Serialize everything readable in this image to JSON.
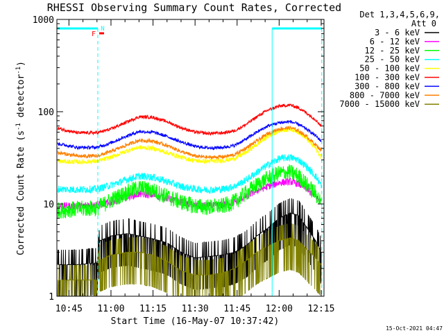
{
  "chart_data": {
    "type": "line",
    "title": "RHESSI Observing Summary Count Rates, Corrected",
    "xlabel": "Start Time (16-May-07 10:37:42)",
    "ylabel_main": "Corrected Count Rate (s",
    "ylabel_sup1": "-1",
    "ylabel_mid": " detector",
    "ylabel_sup2": "-1",
    "ylabel_end": ")",
    "ylog": true,
    "ylim": [
      1,
      1000
    ],
    "xlim_min": [
      40.7,
      136.0
    ],
    "x_ticks": [
      {
        "m": 45,
        "label": "10:45"
      },
      {
        "m": 60,
        "label": "11:00"
      },
      {
        "m": 75,
        "label": "11:15"
      },
      {
        "m": 90,
        "label": "11:30"
      },
      {
        "m": 105,
        "label": "11:45"
      },
      {
        "m": 120,
        "label": "12:00"
      },
      {
        "m": 135,
        "label": "12:15"
      }
    ],
    "y_ticks": [
      {
        "v": 1,
        "label": "1"
      },
      {
        "v": 10,
        "label": "10"
      },
      {
        "v": 100,
        "label": "100"
      },
      {
        "v": 1000,
        "label": "1000"
      }
    ],
    "legend_header": [
      "Det 1,3,4,5,6,9,",
      "Att 0"
    ],
    "legend_placement": "right",
    "timestamp": "15-Oct-2021 04:47",
    "flag_labels": {
      "F": "F",
      "N": "N"
    },
    "night_intervals": [
      [
        40.7,
        55.3
      ],
      [
        117.5,
        135.2
      ]
    ],
    "series": [
      {
        "name": "3 - 6 keV",
        "color": "#000000",
        "noise": 0.55,
        "key": "black",
        "points": [
          [
            41,
            2.2
          ],
          [
            48,
            2.2
          ],
          [
            55,
            2.3
          ],
          [
            56,
            4.0
          ],
          [
            60,
            4.5
          ],
          [
            66,
            4.8
          ],
          [
            70,
            4.5
          ],
          [
            75,
            4.2
          ],
          [
            80,
            3.8
          ],
          [
            85,
            3.0
          ],
          [
            90,
            2.6
          ],
          [
            95,
            2.7
          ],
          [
            100,
            2.8
          ],
          [
            104,
            3.0
          ],
          [
            108,
            3.5
          ],
          [
            112,
            4.5
          ],
          [
            116,
            5.5
          ],
          [
            120,
            7.0
          ],
          [
            124,
            8.0
          ],
          [
            127,
            7.5
          ],
          [
            130,
            5.5
          ],
          [
            133,
            4.0
          ],
          [
            135,
            3.0
          ]
        ]
      },
      {
        "name": "6 - 12 keV",
        "color": "#ff00ff",
        "noise": 0.08,
        "key": "magenta",
        "points": [
          [
            41,
            9.5
          ],
          [
            48,
            9.5
          ],
          [
            55,
            9.8
          ],
          [
            60,
            10.5
          ],
          [
            66,
            12.0
          ],
          [
            70,
            12.8
          ],
          [
            75,
            12.5
          ],
          [
            80,
            11.5
          ],
          [
            85,
            10.5
          ],
          [
            90,
            9.6
          ],
          [
            95,
            9.5
          ],
          [
            100,
            9.8
          ],
          [
            104,
            10.5
          ],
          [
            108,
            12.0
          ],
          [
            112,
            14.0
          ],
          [
            116,
            15.5
          ],
          [
            120,
            17.0
          ],
          [
            124,
            17.5
          ],
          [
            127,
            16.5
          ],
          [
            130,
            14.5
          ],
          [
            133,
            12.0
          ],
          [
            135,
            10.5
          ]
        ]
      },
      {
        "name": "12 - 25 keV",
        "color": "#00ff00",
        "noise": 0.18,
        "key": "green",
        "points": [
          [
            41,
            8.5
          ],
          [
            48,
            8.8
          ],
          [
            55,
            9.0
          ],
          [
            60,
            11.0
          ],
          [
            66,
            13.5
          ],
          [
            70,
            15.0
          ],
          [
            75,
            14.0
          ],
          [
            80,
            12.0
          ],
          [
            85,
            10.5
          ],
          [
            90,
            9.5
          ],
          [
            95,
            9.2
          ],
          [
            100,
            9.5
          ],
          [
            104,
            10.5
          ],
          [
            108,
            13.0
          ],
          [
            112,
            16.0
          ],
          [
            116,
            19.0
          ],
          [
            120,
            21.5
          ],
          [
            124,
            22.0
          ],
          [
            127,
            20.0
          ],
          [
            130,
            16.0
          ],
          [
            133,
            13.0
          ],
          [
            135,
            10.0
          ]
        ]
      },
      {
        "name": "25 - 50 keV",
        "color": "#00ffff",
        "noise": 0.08,
        "key": "cyan",
        "points": [
          [
            41,
            14.5
          ],
          [
            48,
            14.3
          ],
          [
            55,
            14.5
          ],
          [
            60,
            16.0
          ],
          [
            66,
            18.5
          ],
          [
            70,
            20.0
          ],
          [
            75,
            19.5
          ],
          [
            80,
            17.5
          ],
          [
            85,
            15.5
          ],
          [
            90,
            14.5
          ],
          [
            95,
            14.2
          ],
          [
            100,
            14.5
          ],
          [
            104,
            15.5
          ],
          [
            108,
            18.0
          ],
          [
            112,
            22.0
          ],
          [
            116,
            26.5
          ],
          [
            120,
            31.0
          ],
          [
            124,
            32.0
          ],
          [
            127,
            30.0
          ],
          [
            130,
            25.0
          ],
          [
            133,
            20.0
          ],
          [
            135,
            16.0
          ]
        ]
      },
      {
        "name": "50 - 100 keV",
        "color": "#ffff00",
        "noise": 0.05,
        "key": "yellow",
        "points": [
          [
            41,
            29
          ],
          [
            48,
            28.5
          ],
          [
            55,
            29
          ],
          [
            60,
            32
          ],
          [
            66,
            38
          ],
          [
            70,
            41
          ],
          [
            75,
            40
          ],
          [
            80,
            36
          ],
          [
            85,
            32
          ],
          [
            90,
            29.5
          ],
          [
            95,
            29
          ],
          [
            100,
            29.5
          ],
          [
            104,
            31
          ],
          [
            108,
            36
          ],
          [
            112,
            44
          ],
          [
            116,
            54
          ],
          [
            120,
            62
          ],
          [
            124,
            65
          ],
          [
            127,
            60
          ],
          [
            130,
            50
          ],
          [
            133,
            40
          ],
          [
            135,
            32
          ]
        ]
      },
      {
        "name": "100 - 300 keV",
        "color": "#ff0000",
        "noise": 0.035,
        "key": "red",
        "points": [
          [
            41,
            66
          ],
          [
            48,
            59
          ],
          [
            55,
            59
          ],
          [
            60,
            65
          ],
          [
            66,
            78
          ],
          [
            70,
            88
          ],
          [
            75,
            87
          ],
          [
            80,
            78
          ],
          [
            85,
            67
          ],
          [
            90,
            60
          ],
          [
            95,
            58
          ],
          [
            100,
            59
          ],
          [
            104,
            62
          ],
          [
            108,
            72
          ],
          [
            112,
            88
          ],
          [
            116,
            104
          ],
          [
            120,
            115
          ],
          [
            124,
            118
          ],
          [
            127,
            110
          ],
          [
            130,
            96
          ],
          [
            133,
            82
          ],
          [
            135,
            70
          ]
        ]
      },
      {
        "name": "300 - 800 keV",
        "color": "#0000ff",
        "noise": 0.035,
        "key": "blue",
        "points": [
          [
            41,
            45
          ],
          [
            48,
            41
          ],
          [
            55,
            41
          ],
          [
            60,
            46
          ],
          [
            66,
            55
          ],
          [
            70,
            61
          ],
          [
            75,
            60
          ],
          [
            80,
            54
          ],
          [
            85,
            47
          ],
          [
            90,
            42
          ],
          [
            95,
            40.5
          ],
          [
            100,
            41
          ],
          [
            104,
            43
          ],
          [
            108,
            50
          ],
          [
            112,
            60
          ],
          [
            116,
            70
          ],
          [
            120,
            76
          ],
          [
            124,
            78
          ],
          [
            127,
            73
          ],
          [
            130,
            64
          ],
          [
            133,
            55
          ],
          [
            135,
            48
          ]
        ]
      },
      {
        "name": "800 - 7000 keV",
        "color": "#ff8000",
        "noise": 0.04,
        "key": "orange",
        "points": [
          [
            41,
            36
          ],
          [
            48,
            33
          ],
          [
            55,
            33
          ],
          [
            60,
            37
          ],
          [
            66,
            44
          ],
          [
            70,
            49
          ],
          [
            75,
            48
          ],
          [
            80,
            43
          ],
          [
            85,
            37
          ],
          [
            90,
            33
          ],
          [
            95,
            32
          ],
          [
            100,
            32.5
          ],
          [
            104,
            34
          ],
          [
            108,
            40
          ],
          [
            112,
            48
          ],
          [
            116,
            58
          ],
          [
            120,
            65
          ],
          [
            124,
            67
          ],
          [
            127,
            62
          ],
          [
            130,
            53
          ],
          [
            133,
            44
          ],
          [
            135,
            38
          ]
        ]
      },
      {
        "name": "7000 - 15000 keV",
        "color": "#808000",
        "noise": 0.55,
        "key": "olive",
        "points": [
          [
            41,
            1.5
          ],
          [
            48,
            1.5
          ],
          [
            55,
            1.5
          ],
          [
            56,
            2.5
          ],
          [
            60,
            2.8
          ],
          [
            66,
            3.0
          ],
          [
            70,
            3.0
          ],
          [
            75,
            2.8
          ],
          [
            80,
            2.4
          ],
          [
            85,
            1.9
          ],
          [
            90,
            1.7
          ],
          [
            95,
            1.7
          ],
          [
            100,
            1.8
          ],
          [
            104,
            2.0
          ],
          [
            108,
            2.4
          ],
          [
            112,
            3.0
          ],
          [
            116,
            3.5
          ],
          [
            120,
            4.0
          ],
          [
            124,
            4.3
          ],
          [
            127,
            4.0
          ],
          [
            130,
            3.2
          ],
          [
            133,
            2.6
          ],
          [
            135,
            2.2
          ]
        ]
      }
    ]
  }
}
